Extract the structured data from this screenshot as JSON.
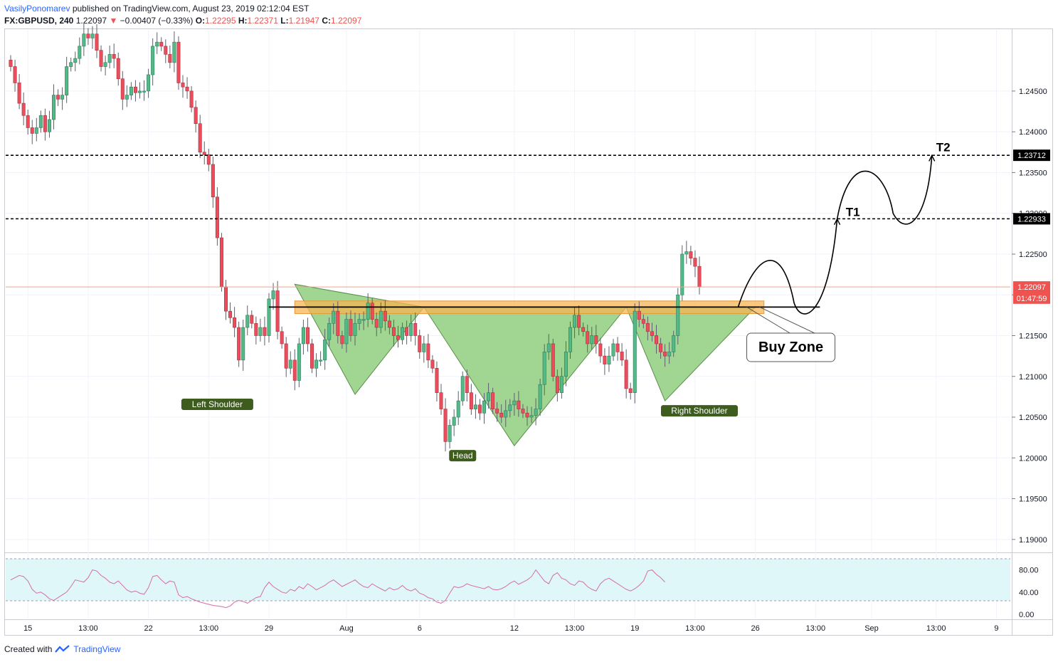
{
  "header": {
    "author": "VasilyPonomarev",
    "published": "published on TradingView.com, August 23, 2019 02:12:04 EST",
    "symbol": "FX:GBPUSD, 240",
    "last": "1.22097",
    "change": "−0.00407 (−0.33%)",
    "o_label": "O:",
    "o_value": "1.22295",
    "h_label": "H:",
    "h_value": "1.22371",
    "l_label": "L:",
    "l_value": "1.21947",
    "c_label": "C:",
    "c_value": "1.22097"
  },
  "footer": {
    "created": "Created with",
    "brand": "TradingView"
  },
  "colors": {
    "up": "#53b987",
    "down": "#eb4d5c",
    "pattern_fill": "#8fcf7f",
    "buy_zone": "#f7b451",
    "rsi_line": "#d46da8",
    "rsi_band": "#e0f7fa",
    "label_bg": "#3d5c1e",
    "price_tag": "#ef5350"
  },
  "chart_data": {
    "type": "candlestick",
    "symbol": "FX:GBPUSD",
    "timeframe": "240",
    "ylim": [
      1.1885,
      1.2525
    ],
    "y_ticks": [
      "1.24500",
      "1.24000",
      "1.23500",
      "1.23000",
      "1.22500",
      "1.22000",
      "1.21500",
      "1.21000",
      "1.20500",
      "1.20000",
      "1.19500",
      "1.19000"
    ],
    "x_ticks": [
      "15",
      "13:00",
      "22",
      "13:00",
      "29",
      "Aug",
      "6",
      "12",
      "13:00",
      "19",
      "13:00",
      "26",
      "13:00",
      "Sep",
      "13:00",
      "9"
    ],
    "price_tags": [
      {
        "label": "1.23712",
        "price": 1.23712
      },
      {
        "label": "1.22933",
        "price": 1.22933
      },
      {
        "label": "1.22097",
        "price": 1.22097
      },
      {
        "label": "01:47:59",
        "price": 1.2196
      }
    ],
    "levels": [
      {
        "name": "T2",
        "price": 1.23712
      },
      {
        "name": "T1",
        "price": 1.22933
      }
    ],
    "neckline": 1.2185,
    "buy_zone": [
      1.2177,
      1.21925
    ],
    "pattern_labels": [
      {
        "text": "Left Shoulder",
        "x": 48,
        "price": 1.2078
      },
      {
        "text": "Head",
        "x": 105,
        "price": 1.2015
      },
      {
        "text": "Right Shoulder",
        "x": 160,
        "price": 1.207
      }
    ],
    "buy_zone_label": "Buy Zone",
    "closes": [
      1.248,
      1.246,
      1.2435,
      1.242,
      1.2405,
      1.2398,
      1.2405,
      1.242,
      1.24,
      1.2415,
      1.2445,
      1.244,
      1.2445,
      1.248,
      1.2485,
      1.249,
      1.2505,
      1.252,
      1.2515,
      1.252,
      1.25,
      1.248,
      1.2485,
      1.2495,
      1.249,
      1.2465,
      1.244,
      1.2445,
      1.2455,
      1.2448,
      1.245,
      1.245,
      1.247,
      1.2505,
      1.251,
      1.2505,
      1.2495,
      1.2485,
      1.251,
      1.246,
      1.2455,
      1.245,
      1.243,
      1.241,
      1.2375,
      1.2372,
      1.236,
      1.232,
      1.227,
      1.221,
      1.218,
      1.2172,
      1.216,
      1.212,
      1.216,
      1.2175,
      1.2165,
      1.215,
      1.216,
      1.215,
      1.2195,
      1.2205,
      1.2155,
      1.214,
      1.211,
      1.212,
      1.2095,
      1.214,
      1.216,
      1.214,
      1.211,
      1.212,
      1.212,
      1.2145,
      1.2165,
      1.218,
      1.215,
      1.214,
      1.217,
      1.215,
      1.2165,
      1.217,
      1.217,
      1.219,
      1.217,
      1.216,
      1.218,
      1.2168,
      1.216,
      1.215,
      1.2145,
      1.216,
      1.215,
      1.2165,
      1.215,
      1.213,
      1.214,
      1.212,
      1.211,
      1.208,
      1.206,
      1.202,
      1.204,
      1.205,
      1.207,
      1.21,
      1.208,
      1.206,
      1.2065,
      1.2055,
      1.207,
      1.208,
      1.206,
      1.2055,
      1.205,
      1.2058,
      1.2065,
      1.207,
      1.206,
      1.2055,
      1.205,
      1.2052,
      1.206,
      1.209,
      1.213,
      1.214,
      1.21,
      1.208,
      1.21,
      1.213,
      1.216,
      1.2175,
      1.216,
      1.2155,
      1.214,
      1.215,
      1.214,
      1.2125,
      1.2115,
      1.2125,
      1.214,
      1.213,
      1.212,
      1.2085,
      1.208,
      1.218,
      1.217,
      1.2165,
      1.2155,
      1.215,
      1.214,
      1.213,
      1.2125,
      1.213,
      1.215,
      1.22,
      1.225,
      1.2253,
      1.2245,
      1.2235,
      1.221
    ],
    "rsi": {
      "name": "RSI",
      "ylim": [
        0,
        100
      ],
      "bands": [
        30,
        70
      ],
      "y_ticks": [
        "80.00",
        "40.00",
        "0.00"
      ],
      "values": [
        62,
        66,
        70,
        68,
        60,
        45,
        38,
        40,
        35,
        28,
        25,
        30,
        35,
        40,
        50,
        62,
        60,
        58,
        66,
        80,
        78,
        70,
        65,
        58,
        55,
        60,
        52,
        44,
        40,
        42,
        38,
        36,
        48,
        68,
        70,
        62,
        55,
        60,
        58,
        35,
        30,
        32,
        28,
        25,
        22,
        20,
        18,
        16,
        15,
        14,
        12,
        15,
        22,
        25,
        23,
        20,
        25,
        30,
        32,
        48,
        58,
        50,
        45,
        40,
        38,
        45,
        42,
        50,
        46,
        55,
        50,
        44,
        48,
        52,
        58,
        62,
        56,
        50,
        54,
        58,
        62,
        55,
        50,
        48,
        55,
        50,
        46,
        42,
        48,
        44,
        46,
        52,
        45,
        42,
        46,
        38,
        35,
        30,
        28,
        22,
        20,
        25,
        38,
        50,
        48,
        50,
        55,
        52,
        50,
        48,
        46,
        50,
        45,
        44,
        46,
        50,
        56,
        60,
        54,
        58,
        62,
        68,
        80,
        70,
        60,
        55,
        70,
        75,
        65,
        62,
        55,
        52,
        60,
        58,
        50,
        45,
        42,
        55,
        62,
        65,
        60,
        55,
        50,
        45,
        42,
        46,
        52,
        60,
        78,
        80,
        72,
        66,
        58
      ]
    }
  }
}
